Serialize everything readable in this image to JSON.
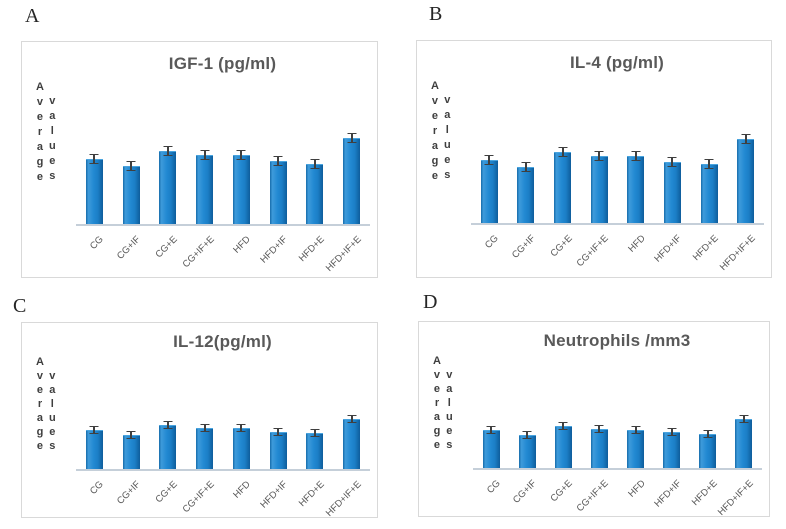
{
  "figure": {
    "background": "#ffffff",
    "panel_letters": [
      "A",
      "B",
      "C",
      "D"
    ]
  },
  "style": {
    "bar_color_main": "#1b7ec6",
    "bar_color_dark_edge": "#0e5d9b",
    "bar_color_highlight": "#3e9bdb",
    "error_bar_color": "#3f3f3f",
    "axis_line_color": "#c5cfd9",
    "title_color": "#595959",
    "axis_label_color": "#3f3f3f",
    "tick_label_color": "#595959",
    "panel_border_color": "#d9d9d9"
  },
  "chart_data": [
    {
      "type": "bar",
      "panel_letter": "A",
      "title": "IGF-1 (pg/ml)",
      "ylabel": "Average values",
      "ylabel_lines": [
        "Average",
        "values"
      ],
      "xlabel": "",
      "categories": [
        "CG",
        "CG+IF",
        "CG+E",
        "CG+IF+E",
        "HFD",
        "HFD+IF",
        "HFD+E",
        "HFD+IF+E"
      ],
      "values": [
        65,
        58,
        73,
        69,
        69,
        63,
        60,
        86
      ],
      "errors": [
        5,
        5,
        5,
        5,
        5,
        5,
        5,
        5
      ],
      "ylim": [
        0,
        140
      ],
      "grid": false,
      "legend": false,
      "value_axis_ticks_visible": false
    },
    {
      "type": "bar",
      "panel_letter": "B",
      "title": "IL-4 (pg/ml)",
      "ylabel": "Average values",
      "ylabel_lines": [
        "Average",
        "values"
      ],
      "xlabel": "",
      "categories": [
        "CG",
        "CG+IF",
        "CG+E",
        "CG+IF+E",
        "HFD",
        "HFD+IF",
        "HFD+E",
        "HFD+IF+E"
      ],
      "values": [
        63,
        56,
        71,
        67,
        67,
        61,
        59,
        84
      ],
      "errors": [
        5,
        5,
        5,
        5,
        5,
        5,
        5,
        5
      ],
      "ylim": [
        0,
        140
      ],
      "grid": false,
      "legend": false,
      "value_axis_ticks_visible": false
    },
    {
      "type": "bar",
      "panel_letter": "C",
      "title": "IL-12(pg/ml)",
      "ylabel": "Average values",
      "ylabel_lines": [
        "Average",
        "values"
      ],
      "xlabel": "",
      "categories": [
        "CG",
        "CG+IF",
        "CG+E",
        "CG+IF+E",
        "HFD",
        "HFD+IF",
        "HFD+E",
        "HFD+IF+E"
      ],
      "values": [
        39,
        34,
        44,
        41,
        41,
        37,
        36,
        50
      ],
      "errors": [
        4,
        4,
        4,
        4,
        4,
        4,
        4,
        4
      ],
      "ylim": [
        0,
        100
      ],
      "grid": false,
      "legend": false,
      "value_axis_ticks_visible": false
    },
    {
      "type": "bar",
      "panel_letter": "D",
      "title": "Neutrophils /mm3",
      "ylabel": "Average values",
      "ylabel_lines": [
        "Average",
        "values"
      ],
      "xlabel": "",
      "categories": [
        "CG",
        "CG+IF",
        "CG+E",
        "CG+IF+E",
        "HFD",
        "HFD+IF",
        "HFD+E",
        "HFD+IF+E"
      ],
      "values": [
        38,
        33,
        42,
        39,
        38,
        36,
        34,
        49
      ],
      "errors": [
        4,
        4,
        4,
        4,
        4,
        4,
        4,
        4
      ],
      "ylim": [
        0,
        100
      ],
      "grid": false,
      "legend": false,
      "value_axis_ticks_visible": false
    }
  ]
}
